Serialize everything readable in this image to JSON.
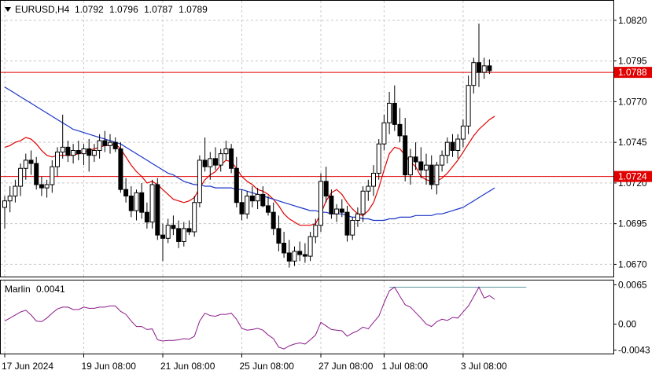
{
  "header": {
    "symbol": "EURUSD,H4",
    "open": "1.0792",
    "high": "1.0796",
    "low": "1.0787",
    "close": "1.0789"
  },
  "indicator": {
    "name": "Marlin",
    "value": "0.0041"
  },
  "colors": {
    "bg": "#ffffff",
    "candle_up": "#ffffff",
    "candle_down": "#000000",
    "wick": "#000000",
    "ma_fast": "#e00000",
    "ma_slow": "#1a35c8",
    "marlin": "#8b1a8b",
    "hline": "#e00000",
    "level_tag": "#e00000",
    "osc_level": "#5a9aa0"
  },
  "chart_data": [
    {
      "type": "candlestick",
      "title": "EURUSD,H4 1.0792 1.0796 1.0787 1.0789",
      "price_axis_ticks": [
        "1.0820",
        "1.0795",
        "1.0770",
        "1.0745",
        "1.0720",
        "1.0695",
        "1.0670"
      ],
      "ylim": [
        1.0662,
        1.0832
      ],
      "time_axis_labels": [
        "17 Jun 2024",
        "19 Jun 08:00",
        "21 Jun 08:00",
        "25 Jun 08:00",
        "27 Jun 08:00",
        "1 Jul 08:00",
        "3 Jul 08:00"
      ],
      "horizontal_levels": [
        {
          "price": 1.0788,
          "label": "1.0788"
        },
        {
          "price": 1.0724,
          "label": "1.0724"
        }
      ],
      "candles": [
        [
          1.0705,
          1.0712,
          1.0692,
          1.0709
        ],
        [
          1.0709,
          1.0718,
          1.0702,
          1.0712
        ],
        [
          1.0712,
          1.0722,
          1.0708,
          1.0718
        ],
        [
          1.0718,
          1.0732,
          1.0712,
          1.0729
        ],
        [
          1.0729,
          1.0738,
          1.0722,
          1.0734
        ],
        [
          1.0734,
          1.074,
          1.0725,
          1.0732
        ],
        [
          1.0732,
          1.0736,
          1.0716,
          1.0719
        ],
        [
          1.0719,
          1.0724,
          1.0712,
          1.0717
        ],
        [
          1.0717,
          1.0722,
          1.0711,
          1.0719
        ],
        [
          1.0719,
          1.0734,
          1.0714,
          1.073
        ],
        [
          1.073,
          1.0742,
          1.0724,
          1.0739
        ],
        [
          1.0739,
          1.0762,
          1.0735,
          1.0742
        ],
        [
          1.0742,
          1.0746,
          1.0733,
          1.0737
        ],
        [
          1.0737,
          1.0744,
          1.0732,
          1.074
        ],
        [
          1.074,
          1.0746,
          1.0734,
          1.0738
        ],
        [
          1.0738,
          1.0744,
          1.0731,
          1.0741
        ],
        [
          1.0741,
          1.0747,
          1.0727,
          1.0737
        ],
        [
          1.0737,
          1.0744,
          1.0733,
          1.074
        ],
        [
          1.074,
          1.075,
          1.0735,
          1.0746
        ],
        [
          1.0746,
          1.0752,
          1.0739,
          1.0743
        ],
        [
          1.0743,
          1.075,
          1.0738,
          1.0745
        ],
        [
          1.0745,
          1.0748,
          1.0739,
          1.0741
        ],
        [
          1.0741,
          1.0745,
          1.0714,
          1.0716
        ],
        [
          1.0716,
          1.0723,
          1.0708,
          1.0712
        ],
        [
          1.0712,
          1.0718,
          1.0699,
          1.0703
        ],
        [
          1.0703,
          1.0716,
          1.0697,
          1.0714
        ],
        [
          1.0714,
          1.072,
          1.0698,
          1.0702
        ],
        [
          1.0702,
          1.0708,
          1.0692,
          1.0696
        ],
        [
          1.0696,
          1.0722,
          1.0692,
          1.0719
        ],
        [
          1.0719,
          1.0723,
          1.0685,
          1.0688
        ],
        [
          1.0688,
          1.0695,
          1.0672,
          1.0686
        ],
        [
          1.0686,
          1.0698,
          1.0683,
          1.0694
        ],
        [
          1.0694,
          1.07,
          1.0688,
          1.0692
        ],
        [
          1.0692,
          1.0697,
          1.068,
          1.0684
        ],
        [
          1.0684,
          1.0696,
          1.0681,
          1.0692
        ],
        [
          1.0692,
          1.0697,
          1.0688,
          1.069
        ],
        [
          1.069,
          1.0712,
          1.0687,
          1.0708
        ],
        [
          1.0708,
          1.0737,
          1.0705,
          1.0734
        ],
        [
          1.0734,
          1.0748,
          1.0727,
          1.073
        ],
        [
          1.073,
          1.0739,
          1.0722,
          1.0735
        ],
        [
          1.0735,
          1.0742,
          1.0728,
          1.0731
        ],
        [
          1.0731,
          1.0741,
          1.0727,
          1.0738
        ],
        [
          1.0738,
          1.0746,
          1.0734,
          1.0741
        ],
        [
          1.0741,
          1.0744,
          1.0726,
          1.0729
        ],
        [
          1.0729,
          1.0736,
          1.0705,
          1.0708
        ],
        [
          1.0708,
          1.0716,
          1.0697,
          1.0701
        ],
        [
          1.0701,
          1.0715,
          1.0698,
          1.0712
        ],
        [
          1.0712,
          1.0718,
          1.0705,
          1.0709
        ],
        [
          1.0709,
          1.0717,
          1.0704,
          1.0713
        ],
        [
          1.0713,
          1.0718,
          1.0705,
          1.0706
        ],
        [
          1.0706,
          1.0712,
          1.07,
          1.0702
        ],
        [
          1.0702,
          1.0708,
          1.0688,
          1.0692
        ],
        [
          1.0692,
          1.07,
          1.0678,
          1.0683
        ],
        [
          1.0683,
          1.069,
          1.0674,
          1.0677
        ],
        [
          1.0677,
          1.0685,
          1.0668,
          1.0672
        ],
        [
          1.0672,
          1.0681,
          1.0669,
          1.0678
        ],
        [
          1.0678,
          1.0684,
          1.0672,
          1.0676
        ],
        [
          1.0676,
          1.0683,
          1.0671,
          1.0675
        ],
        [
          1.0675,
          1.069,
          1.0672,
          1.0687
        ],
        [
          1.0687,
          1.0698,
          1.0683,
          1.0694
        ],
        [
          1.0694,
          1.0726,
          1.069,
          1.0721
        ],
        [
          1.0721,
          1.073,
          1.0708,
          1.0712
        ],
        [
          1.0712,
          1.0716,
          1.0698,
          1.0701
        ],
        [
          1.0701,
          1.0707,
          1.0696,
          1.0704
        ],
        [
          1.0704,
          1.071,
          1.0699,
          1.0702
        ],
        [
          1.0702,
          1.0706,
          1.0684,
          1.0688
        ],
        [
          1.0688,
          1.0699,
          1.0685,
          1.0697
        ],
        [
          1.0697,
          1.0705,
          1.0693,
          1.0701
        ],
        [
          1.0701,
          1.0718,
          1.0696,
          1.0715
        ],
        [
          1.0715,
          1.0722,
          1.0709,
          1.0718
        ],
        [
          1.0718,
          1.0731,
          1.0712,
          1.0726
        ],
        [
          1.0726,
          1.0747,
          1.0722,
          1.0744
        ],
        [
          1.0744,
          1.0762,
          1.074,
          1.0757
        ],
        [
          1.0757,
          1.0776,
          1.075,
          1.0769
        ],
        [
          1.0769,
          1.078,
          1.0752,
          1.0756
        ],
        [
          1.0756,
          1.0766,
          1.0745,
          1.0749
        ],
        [
          1.0749,
          1.076,
          1.0721,
          1.0725
        ],
        [
          1.0725,
          1.0741,
          1.0719,
          1.0736
        ],
        [
          1.0736,
          1.0745,
          1.0728,
          1.0733
        ],
        [
          1.0733,
          1.0742,
          1.0723,
          1.0728
        ],
        [
          1.0728,
          1.0738,
          1.0719,
          1.0731
        ],
        [
          1.0731,
          1.0737,
          1.0716,
          1.0719
        ],
        [
          1.0719,
          1.0733,
          1.0713,
          1.0731
        ],
        [
          1.0731,
          1.074,
          1.0727,
          1.0737
        ],
        [
          1.0737,
          1.0748,
          1.0732,
          1.0745
        ],
        [
          1.0745,
          1.075,
          1.0736,
          1.074
        ],
        [
          1.074,
          1.075,
          1.0735,
          1.0747
        ],
        [
          1.0747,
          1.0759,
          1.0742,
          1.0755
        ],
        [
          1.0755,
          1.0786,
          1.075,
          1.078
        ],
        [
          1.078,
          1.0797,
          1.0775,
          1.0794
        ],
        [
          1.0794,
          1.0818,
          1.0779,
          1.0788
        ],
        [
          1.0788,
          1.0797,
          1.0784,
          1.0792
        ],
        [
          1.0792,
          1.0796,
          1.0787,
          1.0789
        ]
      ],
      "overlay_lines": [
        {
          "color_key": "ma_fast",
          "values": [
            1.0742,
            1.0743,
            1.0745,
            1.0746,
            1.0748,
            1.0747,
            1.0744,
            1.074,
            1.0737,
            1.0736,
            1.0737,
            1.0737,
            1.0737,
            1.0737,
            1.0738,
            1.0739,
            1.074,
            1.0741,
            1.0742,
            1.0743,
            1.0743,
            1.0744,
            1.0741,
            1.0736,
            1.0731,
            1.0727,
            1.0724,
            1.072,
            1.0721,
            1.0719,
            1.0716,
            1.0713,
            1.071,
            1.0709,
            1.0708,
            1.0709,
            1.0711,
            1.0717,
            1.0722,
            1.0725,
            1.0727,
            1.0731,
            1.0734,
            1.0733,
            1.0729,
            1.0724,
            1.0721,
            1.0719,
            1.0716,
            1.0715,
            1.0713,
            1.071,
            1.0706,
            1.0701,
            1.0698,
            1.0696,
            1.0694,
            1.0694,
            1.0694,
            1.0695,
            1.0701,
            1.0709,
            1.0714,
            1.0716,
            1.0713,
            1.0708,
            1.0704,
            1.0701,
            1.07,
            1.0703,
            1.0708,
            1.0717,
            1.0728,
            1.0738,
            1.0742,
            1.0741,
            1.0737,
            1.0733,
            1.073,
            1.0724,
            1.0722,
            1.0721,
            1.0721,
            1.0723,
            1.0726,
            1.073,
            1.0734,
            1.0739,
            1.0744,
            1.0749,
            1.0753,
            1.0756,
            1.0759,
            1.0761
          ]
        },
        {
          "color_key": "ma_slow",
          "values": [
            1.0779,
            1.0777,
            1.0775,
            1.0773,
            1.0771,
            1.0769,
            1.0767,
            1.0765,
            1.0763,
            1.0761,
            1.0759,
            1.0757,
            1.0755,
            1.0753,
            1.0752,
            1.0751,
            1.075,
            1.0749,
            1.0748,
            1.0747,
            1.0746,
            1.0745,
            1.0744,
            1.0742,
            1.074,
            1.0738,
            1.0736,
            1.0734,
            1.0732,
            1.073,
            1.0728,
            1.0726,
            1.0725,
            1.0723,
            1.0721,
            1.072,
            1.0719,
            1.0719,
            1.0718,
            1.0718,
            1.0717,
            1.0717,
            1.0717,
            1.0717,
            1.0716,
            1.0716,
            1.0715,
            1.0714,
            1.0713,
            1.0712,
            1.0711,
            1.071,
            1.0709,
            1.0708,
            1.0707,
            1.0706,
            1.0705,
            1.0704,
            1.0703,
            1.0703,
            1.0702,
            1.0702,
            1.0701,
            1.0701,
            1.0701,
            1.07,
            1.0699,
            1.0699,
            1.0698,
            1.0698,
            1.0697,
            1.0697,
            1.0697,
            1.0698,
            1.0698,
            1.0699,
            1.0699,
            1.0699,
            1.07,
            1.07,
            1.07,
            1.07,
            1.0701,
            1.0701,
            1.0702,
            1.0703,
            1.0704,
            1.0705,
            1.0707,
            1.0709,
            1.0711,
            1.0713,
            1.0715,
            1.0717
          ]
        }
      ]
    },
    {
      "type": "line",
      "title": "Marlin 0.0041",
      "y_axis_ticks": [
        "0.0065",
        "0.00",
        "-0.0043"
      ],
      "ylim": [
        -0.005,
        0.0072
      ],
      "level_line": 0.0061,
      "series": [
        {
          "color_key": "marlin",
          "values": [
            0.0005,
            0.001,
            0.0015,
            0.002,
            0.0023,
            0.0015,
            0.0005,
            0.0004,
            0.001,
            0.0018,
            0.0025,
            0.0028,
            0.0028,
            0.0024,
            0.0024,
            0.0028,
            0.0026,
            0.0026,
            0.0028,
            0.0028,
            0.003,
            0.003,
            0.0021,
            0.0016,
            0.0005,
            -0.0004,
            -0.0004,
            -0.0009,
            -0.0008,
            -0.0026,
            -0.0028,
            -0.0027,
            -0.0027,
            -0.0026,
            -0.0024,
            -0.0025,
            -0.002,
            0.0005,
            0.0018,
            0.0014,
            0.0013,
            0.0016,
            0.0016,
            0.0018,
            0.0008,
            -0.0007,
            -0.001,
            -0.0009,
            -0.0007,
            -0.001,
            -0.0018,
            -0.0024,
            -0.0038,
            -0.0041,
            -0.0036,
            -0.0033,
            -0.0031,
            -0.0033,
            -0.0026,
            -0.0018,
            0.0003,
            -0.0003,
            -0.0009,
            -0.001,
            -0.0011,
            -0.002,
            -0.0015,
            -0.0011,
            -0.0005,
            -0.0008,
            0.0003,
            0.0013,
            0.0035,
            0.0055,
            0.0061,
            0.0046,
            0.0032,
            0.0028,
            0.0019,
            0.001,
            0.0,
            -0.0004,
            0.0004,
            0.0008,
            0.0006,
            0.0011,
            0.001,
            0.002,
            0.003,
            0.0045,
            0.0061,
            0.0043,
            0.0047,
            0.0041
          ]
        }
      ]
    }
  ]
}
